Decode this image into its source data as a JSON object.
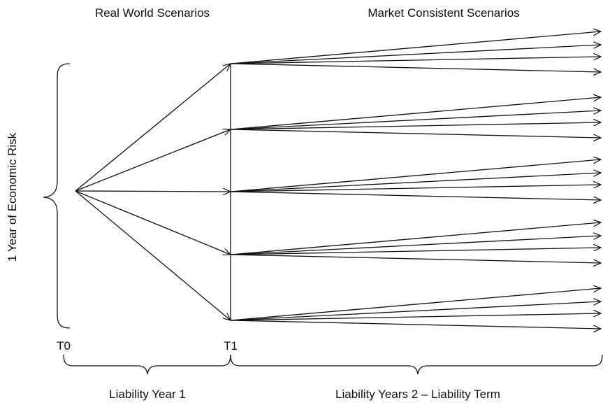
{
  "headings": {
    "real_world": "Real World Scenarios",
    "market_consistent": "Market Consistent Scenarios"
  },
  "side_label": "1 Year of Economic Risk",
  "time_points": {
    "t0": "T0",
    "t1": "T1"
  },
  "periods": {
    "first": "Liability Year 1",
    "rest": "Liability Years 2 – Liability Term"
  },
  "tree": {
    "real_world_branch_count": 5,
    "market_consistent_paths_per_node": 4
  },
  "colors": {
    "stroke": "#111111",
    "background": "#ffffff"
  }
}
